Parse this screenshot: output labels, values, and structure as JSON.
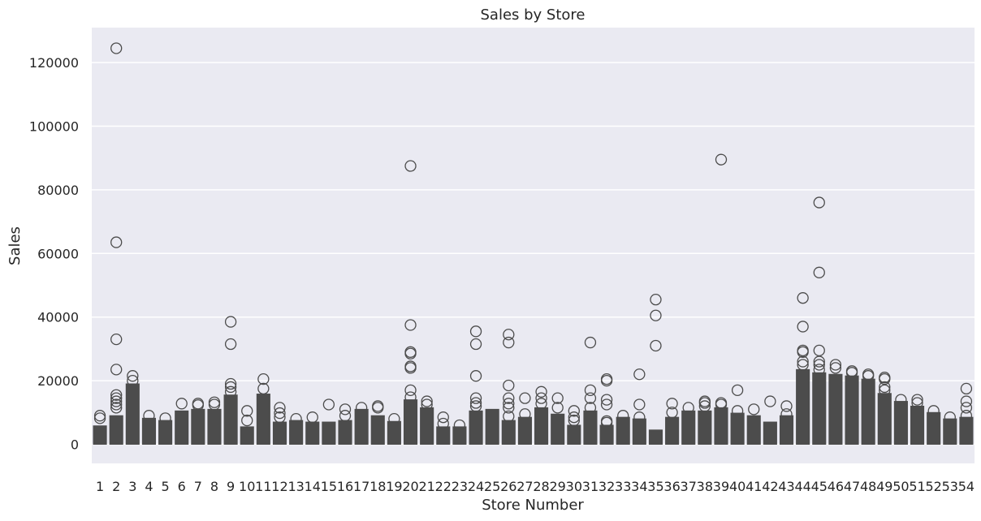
{
  "chart_data": {
    "type": "box",
    "title": "Sales by Store",
    "xlabel": "Store Number",
    "ylabel": "Sales",
    "ylim": [
      -6000,
      131000
    ],
    "yticks": [
      0,
      20000,
      40000,
      60000,
      80000,
      100000,
      120000
    ],
    "grid": true,
    "legend": "none",
    "colors": {
      "background": "#eaeaf2",
      "grid": "#ffffff",
      "box": "#4c4c4c"
    },
    "categories": [
      "1",
      "2",
      "3",
      "4",
      "5",
      "6",
      "7",
      "8",
      "9",
      "10",
      "11",
      "12",
      "13",
      "14",
      "15",
      "16",
      "17",
      "18",
      "19",
      "20",
      "21",
      "22",
      "23",
      "24",
      "25",
      "26",
      "27",
      "28",
      "29",
      "30",
      "31",
      "32",
      "33",
      "34",
      "35",
      "36",
      "37",
      "38",
      "39",
      "40",
      "41",
      "42",
      "43",
      "44",
      "45",
      "46",
      "47",
      "48",
      "49",
      "50",
      "51",
      "52",
      "53",
      "54"
    ],
    "boxes": [
      {
        "top": 5800,
        "outliers": [
          8200,
          9000
        ]
      },
      {
        "top": 9000,
        "outliers": [
          11500,
          12500,
          13500,
          14500,
          15500,
          23500,
          33000,
          63500,
          124500
        ]
      },
      {
        "top": 19000,
        "outliers": [
          20000,
          21500
        ]
      },
      {
        "top": 8200,
        "outliers": [
          9000
        ]
      },
      {
        "top": 7500,
        "outliers": [
          8200
        ]
      },
      {
        "top": 10500,
        "outliers": [
          12800
        ]
      },
      {
        "top": 11000,
        "outliers": [
          12300,
          12800
        ]
      },
      {
        "top": 11000,
        "outliers": [
          12500,
          13200
        ]
      },
      {
        "top": 15500,
        "outliers": [
          16500,
          18000,
          19000,
          31500,
          38500
        ]
      },
      {
        "top": 5500,
        "outliers": [
          7500,
          10500
        ]
      },
      {
        "top": 15800,
        "outliers": [
          17500,
          20500
        ]
      },
      {
        "top": 7000,
        "outliers": [
          8500,
          9800,
          11500
        ]
      },
      {
        "top": 7500,
        "outliers": [
          8000
        ]
      },
      {
        "top": 7000,
        "outliers": [
          8500
        ]
      },
      {
        "top": 7000,
        "outliers": [
          12500
        ]
      },
      {
        "top": 7500,
        "outliers": [
          9000,
          11000
        ]
      },
      {
        "top": 11000,
        "outliers": [
          11500
        ]
      },
      {
        "top": 9000,
        "outliers": [
          11500,
          12000
        ]
      },
      {
        "top": 7200,
        "outliers": [
          8000
        ]
      },
      {
        "top": 14000,
        "outliers": [
          14800,
          17000,
          24000,
          24500,
          28500,
          29000,
          37500,
          87500
        ]
      },
      {
        "top": 11500,
        "outliers": [
          12500,
          13500
        ]
      },
      {
        "top": 5500,
        "outliers": [
          6500,
          8500
        ]
      },
      {
        "top": 5500,
        "outliers": [
          6000
        ]
      },
      {
        "top": 10500,
        "outliers": [
          12000,
          13000,
          14500,
          21500,
          31500,
          35500
        ]
      },
      {
        "top": 11000,
        "outliers": []
      },
      {
        "top": 7500,
        "outliers": [
          8800,
          11500,
          12800,
          14500,
          18500,
          32000,
          34500
        ]
      },
      {
        "top": 8500,
        "outliers": [
          9500,
          14500
        ]
      },
      {
        "top": 11500,
        "outliers": [
          12800,
          14500,
          16500
        ]
      },
      {
        "top": 9500,
        "outliers": [
          11500,
          14500
        ]
      },
      {
        "top": 6000,
        "outliers": [
          7500,
          8500,
          10500
        ]
      },
      {
        "top": 10500,
        "outliers": [
          11500,
          14500,
          17000,
          32000
        ]
      },
      {
        "top": 6000,
        "outliers": [
          6800,
          7300,
          12500,
          14000,
          20000,
          20500
        ]
      },
      {
        "top": 8500,
        "outliers": [
          9000
        ]
      },
      {
        "top": 8000,
        "outliers": [
          8500,
          12500,
          22000
        ]
      },
      {
        "top": 4500,
        "outliers": [
          31000,
          40500,
          45500
        ]
      },
      {
        "top": 8500,
        "outliers": [
          10000,
          12800
        ]
      },
      {
        "top": 10500,
        "outliers": [
          11500
        ]
      },
      {
        "top": 10500,
        "outliers": [
          12000,
          13000,
          13500
        ]
      },
      {
        "top": 11500,
        "outliers": [
          12500,
          13000,
          89500
        ]
      },
      {
        "top": 9800,
        "outliers": [
          10500,
          17000
        ]
      },
      {
        "top": 9000,
        "outliers": [
          11000
        ]
      },
      {
        "top": 7000,
        "outliers": [
          13500
        ]
      },
      {
        "top": 9000,
        "outliers": [
          9500,
          12000
        ]
      },
      {
        "top": 23500,
        "outliers": [
          25000,
          26000,
          29000,
          29500,
          37000,
          46000
        ]
      },
      {
        "top": 22500,
        "outliers": [
          23500,
          25000,
          26000,
          29500,
          54000,
          76000
        ]
      },
      {
        "top": 22000,
        "outliers": [
          24000,
          25000
        ]
      },
      {
        "top": 21500,
        "outliers": [
          22500,
          23000
        ]
      },
      {
        "top": 20500,
        "outliers": [
          21500,
          22000
        ]
      },
      {
        "top": 16000,
        "outliers": [
          17000,
          18000,
          20500,
          21000
        ]
      },
      {
        "top": 13500,
        "outliers": [
          14000
        ]
      },
      {
        "top": 12000,
        "outliers": [
          13000,
          14000
        ]
      },
      {
        "top": 10000,
        "outliers": [
          10500
        ]
      },
      {
        "top": 8000,
        "outliers": [
          8500
        ]
      },
      {
        "top": 8500,
        "outliers": [
          9000,
          11500,
          13500,
          17500
        ]
      }
    ]
  }
}
